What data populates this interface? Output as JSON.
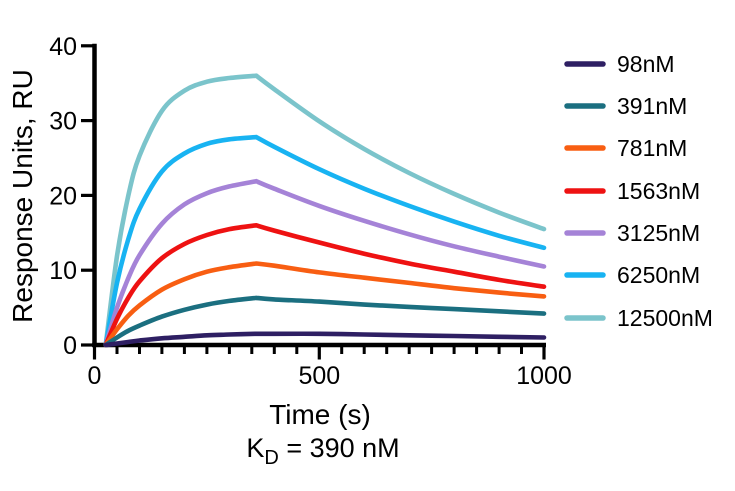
{
  "labels": {
    "y_axis_title": "Response Units, RU",
    "x_axis_title": "Time (s)",
    "kd_k": "K",
    "kd_sub": "D",
    "kd_rest": " = 390 nM"
  },
  "chart_data": {
    "type": "line",
    "title": "",
    "xlabel": "Time (s)",
    "ylabel": "Response Units, RU",
    "annotation": "KD = 390 nM",
    "kd_value_nM": 390,
    "xlim": [
      0,
      1000
    ],
    "ylim": [
      0,
      40
    ],
    "x_major_ticks": [
      0,
      500,
      1000
    ],
    "x_minor_tick_interval_s": 50,
    "y_ticks": [
      0,
      10,
      20,
      30,
      40
    ],
    "grid": false,
    "legend_position": "right",
    "axis_color": "#000000",
    "association_end_s": 360,
    "x": [
      25,
      50,
      75,
      100,
      150,
      200,
      250,
      300,
      360,
      400,
      500,
      600,
      700,
      800,
      900,
      1000
    ],
    "series": [
      {
        "name": "98nM",
        "color": "#2e1f63",
        "values": [
          0,
          0.2,
          0.4,
          0.6,
          0.9,
          1.1,
          1.3,
          1.4,
          1.5,
          1.5,
          1.5,
          1.4,
          1.3,
          1.2,
          1.1,
          1.0
        ]
      },
      {
        "name": "391nM",
        "color": "#1b6f80",
        "values": [
          0,
          1.0,
          1.9,
          2.6,
          3.8,
          4.7,
          5.4,
          5.9,
          6.3,
          6.1,
          5.8,
          5.4,
          5.1,
          4.8,
          4.5,
          4.2
        ]
      },
      {
        "name": "781nM",
        "color": "#f85e12",
        "values": [
          0,
          2.1,
          3.9,
          5.3,
          7.4,
          8.8,
          9.8,
          10.4,
          10.9,
          10.6,
          9.7,
          9.0,
          8.3,
          7.6,
          7.0,
          6.5
        ]
      },
      {
        "name": "1563nM",
        "color": "#ee1212",
        "values": [
          0,
          3.5,
          6.3,
          8.5,
          11.6,
          13.5,
          14.7,
          15.5,
          16.0,
          15.3,
          13.7,
          12.2,
          10.9,
          9.8,
          8.7,
          7.8
        ]
      },
      {
        "name": "3125nM",
        "color": "#a583d7",
        "values": [
          0,
          5.0,
          8.9,
          12.0,
          16.2,
          18.8,
          20.3,
          21.2,
          21.9,
          20.9,
          18.6,
          16.6,
          14.8,
          13.2,
          11.8,
          10.5
        ]
      },
      {
        "name": "6250nM",
        "color": "#18b3f2",
        "values": [
          0,
          8.3,
          14.1,
          18.2,
          23.2,
          25.6,
          26.9,
          27.5,
          27.8,
          26.5,
          23.5,
          20.9,
          18.6,
          16.5,
          14.6,
          13.0
        ]
      },
      {
        "name": "12500nM",
        "color": "#7bc4cb",
        "values": [
          0,
          11.9,
          19.9,
          25.3,
          31.3,
          34.0,
          35.2,
          35.7,
          36.0,
          34.2,
          29.9,
          26.2,
          23.0,
          20.2,
          17.7,
          15.5
        ]
      }
    ]
  }
}
